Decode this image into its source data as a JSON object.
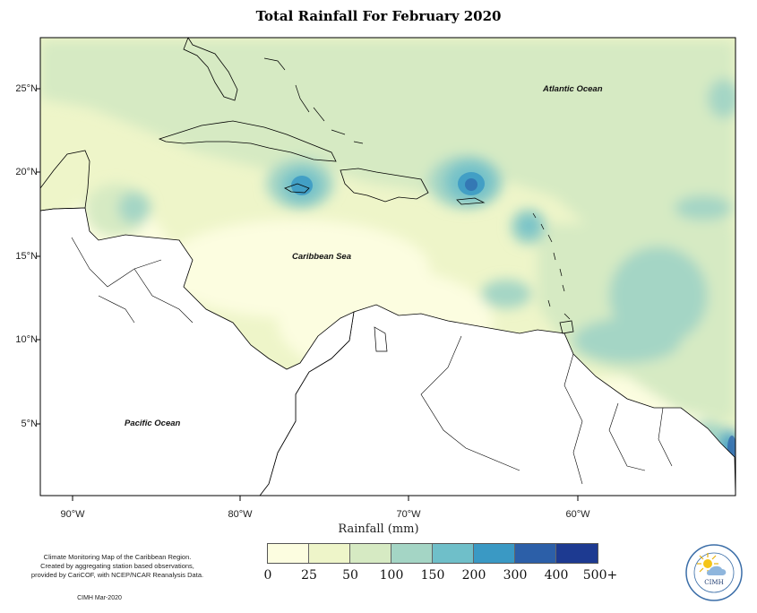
{
  "title": "Total Rainfall For February 2020",
  "map": {
    "lat_labels": [
      "25°N",
      "20°N",
      "15°N",
      "10°N",
      "5°N"
    ],
    "lon_labels": [
      "90°W",
      "80°W",
      "70°W",
      "60°W"
    ],
    "x_axis_title": "Rainfall (mm)",
    "regions": {
      "atlantic": "Atlantic Ocean",
      "caribbean": "Caribbean Sea",
      "pacific": "Pacific Ocean"
    }
  },
  "legend": {
    "thresholds": [
      "0",
      "25",
      "50",
      "100",
      "150",
      "200",
      "300",
      "400",
      "500+"
    ],
    "colors": [
      "#fcfde0",
      "#eef5c9",
      "#d6eac3",
      "#a4d5c5",
      "#6fbfc9",
      "#3a99c4",
      "#2c5fa8",
      "#1d3a91",
      "#0b1d5a"
    ]
  },
  "credit": {
    "lines": [
      "Climate Monitoring Map of the Caribbean Region.",
      "Created by aggregating station based observations,",
      "provided by CariCOF, with NCEP/NCAR Reanalysis Data."
    ],
    "stamp": "CIMH Mar-2020"
  },
  "logo": {
    "text": "CIMH",
    "icon": "cimh-sun-logo-icon"
  }
}
